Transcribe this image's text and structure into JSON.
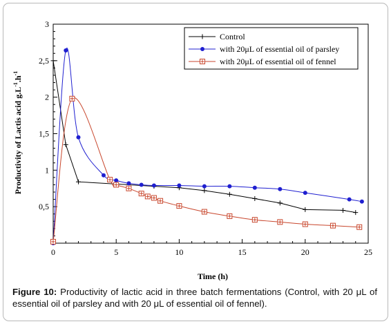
{
  "figure": {
    "caption_label": "Figure 10:",
    "caption_text": "Productivity of lactic acid in three batch fermentations (Control, with 20 μL of essential oil of parsley and with 20 μL of essential oil of fennel)."
  },
  "chart_data": {
    "type": "line",
    "xlabel": "Time (h)",
    "ylabel": "Productivity of Lactis acid g.L",
    "ylabel_sup1": "-1",
    "ylabel_mid": ".h",
    "ylabel_sup2": "-1",
    "xlim": [
      0,
      25
    ],
    "ylim": [
      0,
      3
    ],
    "x_ticks": [
      0,
      5,
      10,
      15,
      20,
      25
    ],
    "y_ticks": [
      0.5,
      1,
      1.5,
      2,
      2.5,
      3
    ],
    "x_tick_labels": [
      "0",
      "5",
      "10",
      "15",
      "20",
      "25"
    ],
    "y_tick_labels": [
      "0,5",
      "1",
      "1,5",
      "2",
      "2,5",
      "3"
    ],
    "grid": false,
    "legend_position": "top-right",
    "series": [
      {
        "name": "Control",
        "color": "#000000",
        "marker": "plus",
        "smooth": false,
        "x": [
          0,
          1,
          2,
          5,
          8,
          10,
          12,
          14,
          16,
          18,
          20,
          23,
          24
        ],
        "y": [
          2.5,
          1.35,
          0.84,
          0.81,
          0.78,
          0.76,
          0.72,
          0.67,
          0.61,
          0.55,
          0.46,
          0.45,
          0.42
        ]
      },
      {
        "name": "with 20μL of essential oil of parsley",
        "color": "#1f1fd0",
        "marker": "dot",
        "smooth": true,
        "x": [
          0,
          1,
          2,
          4,
          5,
          6,
          7,
          8,
          10,
          12,
          14,
          16,
          18,
          20,
          23.5,
          24.5
        ],
        "y": [
          0,
          2.64,
          1.45,
          0.93,
          0.86,
          0.82,
          0.8,
          0.79,
          0.79,
          0.78,
          0.78,
          0.76,
          0.74,
          0.69,
          0.6,
          0.57
        ]
      },
      {
        "name": "with 20μL of essential oil of fennel",
        "color": "#c8462c",
        "marker": "boxed-plus",
        "smooth": true,
        "x": [
          0,
          1.5,
          4.5,
          5,
          6,
          7,
          7.5,
          8,
          8.5,
          10,
          12,
          14,
          16,
          18,
          20,
          22.2,
          24.3
        ],
        "y": [
          0.02,
          1.98,
          0.87,
          0.8,
          0.75,
          0.68,
          0.64,
          0.62,
          0.58,
          0.51,
          0.43,
          0.37,
          0.32,
          0.29,
          0.26,
          0.24,
          0.22
        ]
      }
    ]
  }
}
